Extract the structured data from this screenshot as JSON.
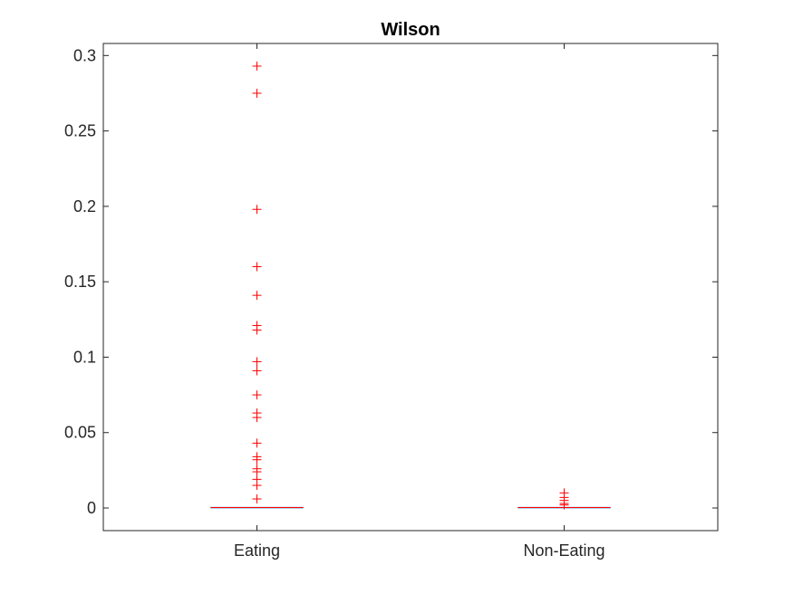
{
  "chart_data": {
    "type": "boxplot",
    "title": "Wilson",
    "xlabel": "",
    "ylabel": "",
    "categories": [
      "Eating",
      "Non-Eating"
    ],
    "ylim": [
      -0.015,
      0.308
    ],
    "yticks": [
      0,
      0.05,
      0.1,
      0.15,
      0.2,
      0.25,
      0.3
    ],
    "ytick_labels": [
      "0",
      "0.05",
      "0.1",
      "0.15",
      "0.2",
      "0.25",
      "0.3"
    ],
    "grid": false,
    "series": [
      {
        "category": "Eating",
        "median": 0.0003,
        "q1": 0.0,
        "q3": 0.0005,
        "whisker_low": 0.0,
        "whisker_high": 0.0005,
        "outliers": [
          0.293,
          0.275,
          0.198,
          0.16,
          0.141,
          0.121,
          0.118,
          0.097,
          0.091,
          0.075,
          0.063,
          0.06,
          0.043,
          0.034,
          0.032,
          0.026,
          0.024,
          0.019,
          0.015,
          0.006
        ]
      },
      {
        "category": "Non-Eating",
        "median": 0.0003,
        "q1": 0.0,
        "q3": 0.0005,
        "whisker_low": 0.0,
        "whisker_high": 0.0005,
        "outliers": [
          0.01,
          0.007,
          0.005,
          0.003,
          0.002
        ]
      }
    ],
    "colors": {
      "outlier": "#ff0000",
      "median": "#ff0000",
      "axis": "#262626"
    }
  }
}
